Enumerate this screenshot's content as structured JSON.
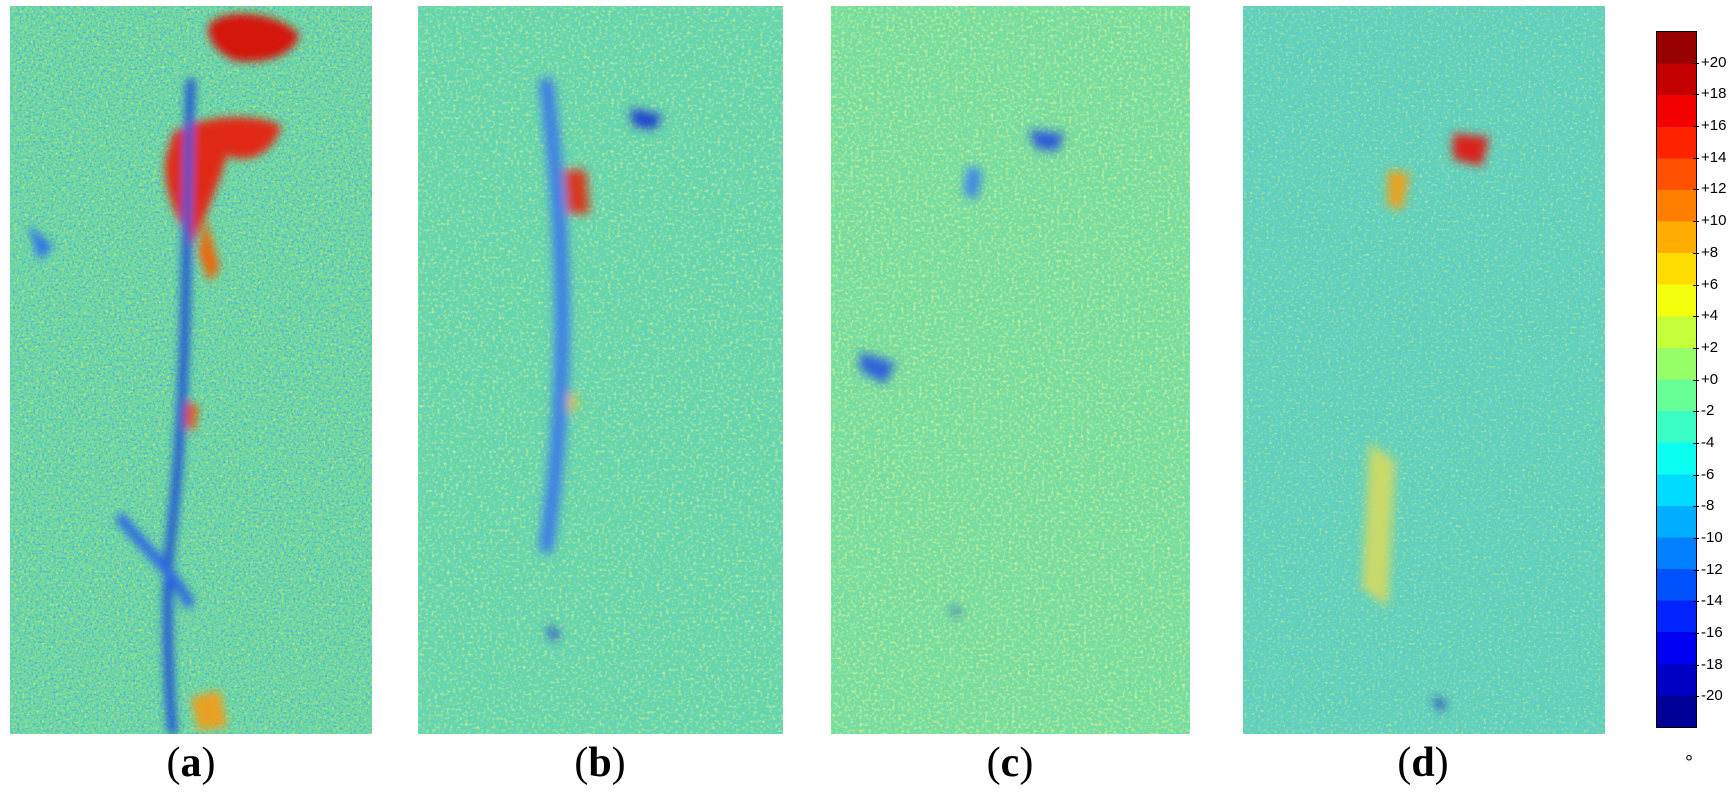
{
  "panels": [
    {
      "id": "a",
      "label_open": "(",
      "label_letter": "a",
      "label_close": ")"
    },
    {
      "id": "b",
      "label_open": "(",
      "label_letter": "b",
      "label_close": ")"
    },
    {
      "id": "c",
      "label_open": "(",
      "label_letter": "c",
      "label_close": ")"
    },
    {
      "id": "d",
      "label_open": "(",
      "label_letter": "d",
      "label_close": ")"
    }
  ],
  "colorbar": {
    "colormap": "jet",
    "range": [
      -22,
      22
    ],
    "ticks": [
      "+20",
      "+18",
      "+16",
      "+14",
      "+12",
      "+10",
      "+8",
      "+6",
      "+4",
      "+2",
      "+0",
      "-2",
      "-4",
      "-6",
      "-8",
      "-10",
      "-12",
      "-14",
      "-16",
      "-18",
      "-20"
    ],
    "unit": "°"
  }
}
